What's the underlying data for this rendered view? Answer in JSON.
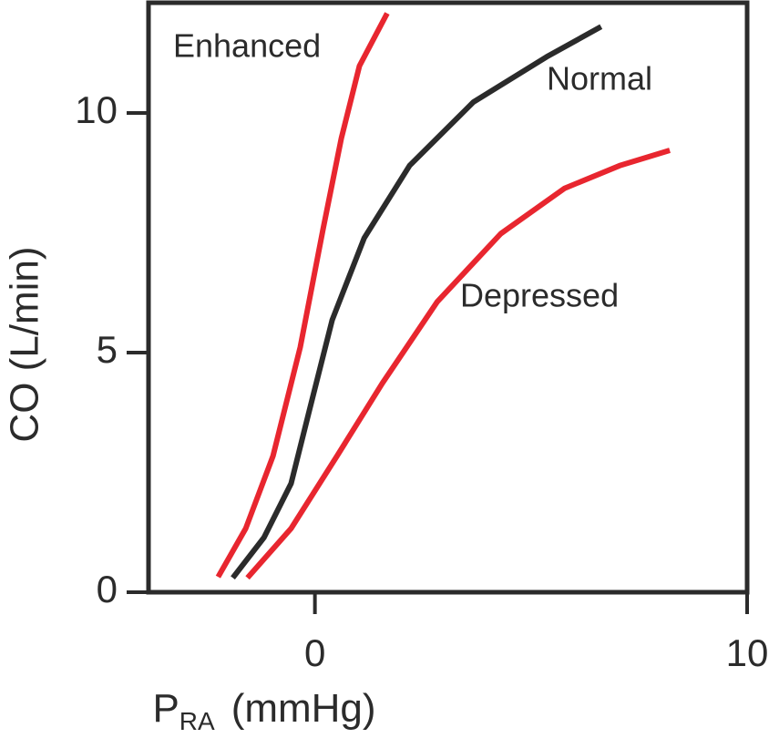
{
  "chart_data": {
    "type": "line",
    "x_label": {
      "main": "P",
      "subscript": "RA",
      "unit": "(mmHg)"
    },
    "y_label": "CO (L/min)",
    "xlim": [
      -3.85,
      10
    ],
    "ylim": [
      0,
      12.3
    ],
    "xticks": [
      0,
      10
    ],
    "yticks": [
      0,
      5,
      10
    ],
    "series": [
      {
        "name": "Enhanced",
        "color": "#e8262f",
        "x": [
          -2.24,
          -1.6,
          -0.97,
          -0.34,
          0.19,
          0.61,
          1.03,
          1.67
        ],
        "values": [
          0.32,
          1.33,
          2.84,
          5.11,
          7.58,
          9.47,
          10.98,
          12.08
        ]
      },
      {
        "name": "Normal",
        "color": "#2b2b2b",
        "x": [
          -1.9,
          -1.18,
          -0.55,
          -0.13,
          0.4,
          1.14,
          2.19,
          3.67,
          5.36,
          6.62
        ],
        "values": [
          0.3,
          1.14,
          2.27,
          3.79,
          5.68,
          7.39,
          8.9,
          10.23,
          11.17,
          11.8
        ]
      },
      {
        "name": "Depressed",
        "color": "#e8262f",
        "x": [
          -1.56,
          -0.55,
          0.51,
          1.56,
          2.83,
          4.3,
          5.78,
          7.05,
          8.21
        ],
        "values": [
          0.3,
          1.33,
          2.84,
          4.36,
          6.06,
          7.48,
          8.43,
          8.9,
          9.22
        ]
      }
    ]
  }
}
